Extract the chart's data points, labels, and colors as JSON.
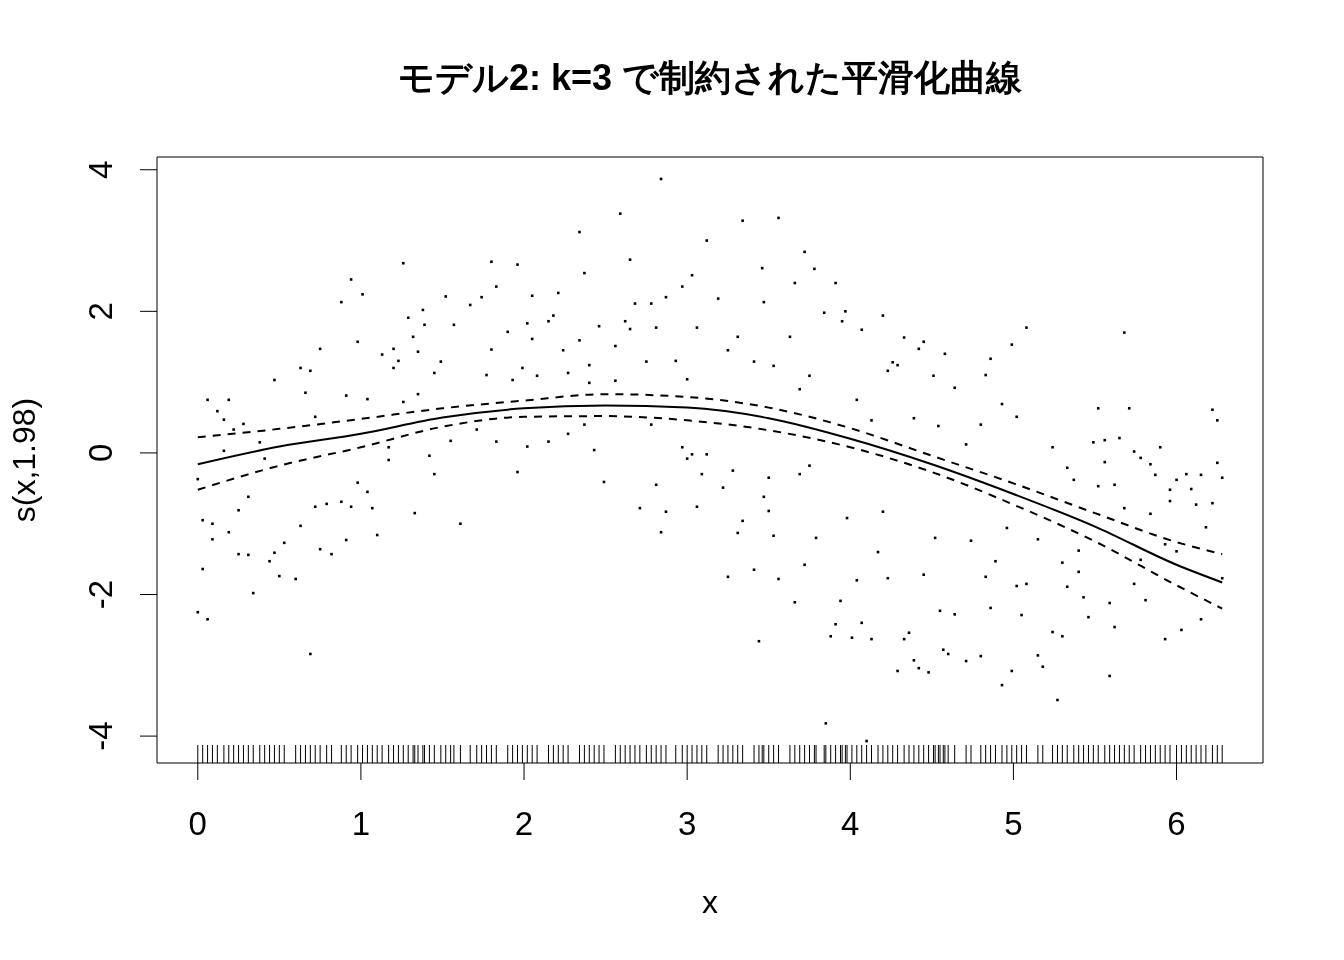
{
  "chart_data": {
    "type": "line",
    "title": "モデル2: k=3 で制約された平滑化曲線",
    "xlabel": "x",
    "ylabel": "s(x,1.98)",
    "xlim": [
      -0.25,
      6.53
    ],
    "ylim": [
      -4.38,
      4.18
    ],
    "xticks": [
      0,
      1,
      2,
      3,
      4,
      5,
      6
    ],
    "yticks": [
      -4,
      -2,
      0,
      2,
      4
    ],
    "series": [
      {
        "type": "line",
        "color": "#000000",
        "line_style": "solid",
        "x": [
          0,
          0.5,
          1,
          1.5,
          2,
          2.5,
          3,
          3.5,
          4,
          4.5,
          5,
          5.5,
          6,
          6.28
        ],
        "values": [
          -0.16,
          0.09,
          0.27,
          0.5,
          0.63,
          0.67,
          0.64,
          0.49,
          0.2,
          -0.16,
          -0.58,
          -1.04,
          -1.58,
          -1.83
        ]
      },
      {
        "type": "line",
        "color": "#000000",
        "line_style": "dashed",
        "x": [
          0,
          0.5,
          1,
          1.5,
          2,
          2.5,
          3,
          3.5,
          4,
          4.5,
          5,
          5.5,
          6,
          6.28
        ],
        "values": [
          0.22,
          0.34,
          0.48,
          0.63,
          0.74,
          0.83,
          0.79,
          0.64,
          0.35,
          -0.04,
          -0.43,
          -0.85,
          -1.26,
          -1.43
        ]
      },
      {
        "type": "line",
        "color": "#000000",
        "line_style": "dashed",
        "x": [
          0,
          0.5,
          1,
          1.5,
          2,
          2.5,
          3,
          3.5,
          4,
          4.5,
          5,
          5.5,
          6,
          6.28
        ],
        "values": [
          -0.52,
          -0.18,
          0.08,
          0.37,
          0.51,
          0.52,
          0.46,
          0.32,
          0.08,
          -0.27,
          -0.73,
          -1.25,
          -1.87,
          -2.2
        ]
      },
      {
        "type": "scatter",
        "color": "#000000",
        "marker": "square",
        "x": [
          0,
          0,
          0.03,
          0.03,
          0.06,
          0.06,
          0.09,
          0.09,
          0.12,
          0.16,
          0.16,
          0.19,
          0.19,
          0.22,
          0.25,
          0.25,
          0.28,
          0.31,
          0.31,
          0.34,
          0.38,
          0.41,
          0.44,
          0.47,
          0.47,
          0.5,
          0.53,
          0.6,
          0.63,
          0.63,
          0.66,
          0.69,
          0.69,
          0.72,
          0.72,
          0.75,
          0.75,
          0.79,
          0.82,
          0.88,
          0.88,
          0.91,
          0.91,
          0.94,
          0.94,
          0.98,
          0.98,
          1.01,
          1.04,
          1.04,
          1.07,
          1.1,
          1.13,
          1.17,
          1.17,
          1.2,
          1.2,
          1.23,
          1.26,
          1.26,
          1.29,
          1.32,
          1.33,
          1.35,
          1.35,
          1.38,
          1.39,
          1.42,
          1.45,
          1.45,
          1.49,
          1.52,
          1.55,
          1.57,
          1.61,
          1.67,
          1.71,
          1.74,
          1.77,
          1.8,
          1.8,
          1.83,
          1.83,
          1.9,
          1.93,
          1.96,
          1.96,
          1.99,
          2.02,
          2.02,
          2.05,
          2.05,
          2.08,
          2.15,
          2.15,
          2.18,
          2.21,
          2.24,
          2.27,
          2.27,
          2.34,
          2.34,
          2.37,
          2.37,
          2.4,
          2.4,
          2.43,
          2.46,
          2.49,
          2.56,
          2.56,
          2.59,
          2.62,
          2.65,
          2.65,
          2.68,
          2.71,
          2.75,
          2.78,
          2.78,
          2.81,
          2.81,
          2.84,
          2.84,
          2.87,
          2.87,
          2.93,
          2.97,
          2.97,
          3,
          3,
          3.03,
          3.03,
          3.06,
          3.06,
          3.09,
          3.12,
          3.12,
          3.19,
          3.22,
          3.25,
          3.25,
          3.28,
          3.31,
          3.31,
          3.34,
          3.34,
          3.41,
          3.41,
          3.44,
          3.46,
          3.47,
          3.47,
          3.5,
          3.5,
          3.53,
          3.53,
          3.56,
          3.56,
          3.63,
          3.66,
          3.66,
          3.69,
          3.69,
          3.72,
          3.72,
          3.75,
          3.75,
          3.78,
          3.79,
          3.84,
          3.85,
          3.88,
          3.91,
          3.91,
          3.94,
          3.95,
          3.97,
          3.98,
          4.01,
          4.04,
          4.04,
          4.07,
          4.07,
          4.1,
          4.13,
          4.13,
          4.17,
          4.2,
          4.2,
          4.23,
          4.23,
          4.26,
          4.29,
          4.29,
          4.33,
          4.33,
          4.36,
          4.39,
          4.39,
          4.42,
          4.42,
          4.45,
          4.45,
          4.48,
          4.51,
          4.52,
          4.54,
          4.55,
          4.57,
          4.58,
          4.6,
          4.64,
          4.64,
          4.71,
          4.71,
          4.74,
          4.8,
          4.8,
          4.83,
          4.83,
          4.86,
          4.86,
          4.89,
          4.93,
          4.93,
          4.96,
          4.99,
          4.99,
          5.02,
          5.02,
          5.05,
          5.08,
          5.08,
          5.15,
          5.15,
          5.18,
          5.24,
          5.24,
          5.27,
          5.3,
          5.3,
          5.33,
          5.33,
          5.37,
          5.4,
          5.4,
          5.43,
          5.46,
          5.49,
          5.52,
          5.52,
          5.56,
          5.56,
          5.59,
          5.59,
          5.62,
          5.62,
          5.65,
          5.68,
          5.68,
          5.71,
          5.74,
          5.74,
          5.78,
          5.78,
          5.81,
          5.84,
          5.84,
          5.87,
          5.9,
          5.93,
          5.93,
          5.96,
          5.96,
          6,
          6,
          6.03,
          6.06,
          6.09,
          6.12,
          6.15,
          6.15,
          6.18,
          6.22,
          6.22,
          6.25,
          6.25,
          6.28,
          6.28
        ],
        "values": [
          -0.37,
          -2.25,
          -0.95,
          -1.64,
          0.75,
          -2.35,
          -1,
          -1.22,
          0.59,
          0.47,
          0.03,
          0.75,
          -1.12,
          0.33,
          -0.81,
          -1.43,
          0.41,
          -0.62,
          -1.44,
          -1.98,
          0.15,
          -0.08,
          -1.53,
          1.03,
          -1.41,
          -1.74,
          -1.27,
          -1.78,
          1.2,
          -1.03,
          0.85,
          1.16,
          -2.84,
          0.51,
          -0.76,
          1.47,
          -1.36,
          -0.72,
          -1.43,
          2.13,
          -0.69,
          0.81,
          -1.23,
          2.45,
          -0.76,
          1.57,
          -0.42,
          2.24,
          0.76,
          -0.55,
          -0.78,
          -1.16,
          1.39,
          0.08,
          -0.1,
          1.47,
          1.2,
          1.3,
          2.68,
          0.72,
          1.91,
          1.64,
          -0.85,
          1.43,
          0.83,
          2.02,
          1.81,
          -0.04,
          1.13,
          -0.3,
          1.29,
          2.21,
          0.17,
          1.81,
          -1,
          2.09,
          0.33,
          2.2,
          1.1,
          2.7,
          1.46,
          2.35,
          0.16,
          1.71,
          1.03,
          2.66,
          -0.27,
          1.2,
          1.83,
          0.09,
          2.22,
          1.61,
          1.09,
          1.86,
          0.16,
          1.94,
          2.26,
          1.45,
          1.13,
          0.27,
          3.12,
          1.59,
          2.54,
          0.4,
          1.24,
          0.99,
          0.04,
          1.79,
          -0.41,
          1.51,
          1.02,
          3.38,
          1.86,
          2.73,
          1.75,
          2.11,
          -0.78,
          1.29,
          2.11,
          0.4,
          1.77,
          -0.45,
          3.87,
          -1.12,
          2.2,
          -0.83,
          1.3,
          2.35,
          0.08,
          1.04,
          -0.08,
          2.51,
          -0.02,
          1.77,
          -0.76,
          -0.3,
          3,
          -0.02,
          2.18,
          -0.49,
          1.45,
          -1.75,
          -0.25,
          1.64,
          -1.13,
          3.28,
          -0.96,
          1.29,
          -1.65,
          -2.66,
          2.61,
          2.13,
          -0.62,
          -0.35,
          -0.82,
          1.23,
          -1.17,
          3.32,
          -1.78,
          1.64,
          2.4,
          -2.11,
          0.9,
          -0.3,
          2.84,
          -1.58,
          1.09,
          -0.18,
          2.6,
          -1.2,
          1.98,
          -3.82,
          -2.59,
          2.4,
          -2.42,
          -2.09,
          1.86,
          2,
          -0.92,
          -2.61,
          0.75,
          -1.8,
          1.74,
          -2.4,
          -4.07,
          0.46,
          -2.63,
          -1.4,
          1.94,
          -0.83,
          1.16,
          -1.77,
          1.28,
          1.24,
          -3.08,
          1.63,
          -2.63,
          -2.54,
          0.49,
          -2.93,
          1.47,
          -3.04,
          1.57,
          -1.72,
          -3.1,
          1.09,
          -1.2,
          0.38,
          -2.23,
          -2.78,
          1.4,
          -2.84,
          0.92,
          -2.28,
          0.12,
          -2.94,
          -1.24,
          0.4,
          -2.87,
          1.1,
          -1.75,
          1.33,
          -2.19,
          -1.53,
          0.69,
          -3.28,
          -1.06,
          1.53,
          -3.08,
          0.51,
          -1.88,
          -2.29,
          1.77,
          -1.85,
          -1.22,
          -2.86,
          -3.02,
          0.08,
          -2.53,
          -3.49,
          -1.55,
          -2.59,
          -0.21,
          -1.89,
          -0.38,
          -1.38,
          -1.68,
          -2.04,
          -2.32,
          0.15,
          0.63,
          -0.47,
          0.18,
          -0.13,
          -2.12,
          -3.15,
          -0.45,
          -2.46,
          0.21,
          1.7,
          -0.78,
          0.63,
          0.02,
          -1.85,
          -0.07,
          -1.51,
          -2.08,
          -0.16,
          -0.86,
          -0.31,
          0.08,
          -1.29,
          -2.63,
          -0.52,
          -0.68,
          -0.38,
          -1.39,
          -2.5,
          -0.3,
          -0.51,
          -0.73,
          -0.31,
          -2.35,
          -1.05,
          0.61,
          -0.71,
          0.46,
          -0.14,
          -0.35,
          -1.77
        ]
      }
    ]
  }
}
